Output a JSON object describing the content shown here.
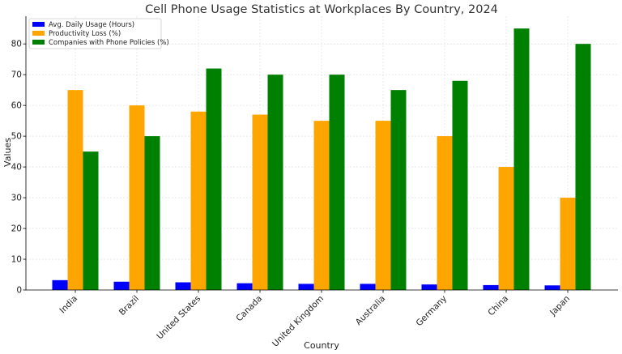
{
  "chart_data": {
    "type": "bar",
    "title": "Cell Phone Usage Statistics at Workplaces By Country, 2024",
    "xlabel": "Country",
    "ylabel": "Values",
    "ylim": [
      0,
      89
    ],
    "yticks": [
      0,
      10,
      20,
      30,
      40,
      50,
      60,
      70,
      80
    ],
    "grid": true,
    "legend_position": "top-left",
    "categories": [
      "India",
      "Brazil",
      "United States",
      "Canada",
      "United Kingdom",
      "Australia",
      "Germany",
      "China",
      "Japan"
    ],
    "series": [
      {
        "name": "Avg. Daily Usage (Hours)",
        "color": "#0000ff",
        "values": [
          3.2,
          2.7,
          2.5,
          2.2,
          2.0,
          2.0,
          1.8,
          1.6,
          1.5
        ]
      },
      {
        "name": "Productivity Loss (%)",
        "color": "#ffa500",
        "values": [
          65,
          60,
          58,
          57,
          55,
          55,
          50,
          40,
          30
        ]
      },
      {
        "name": "Companies with Phone Policies (%)",
        "color": "#008000",
        "values": [
          45,
          50,
          72,
          70,
          70,
          65,
          68,
          85,
          80
        ]
      }
    ]
  }
}
